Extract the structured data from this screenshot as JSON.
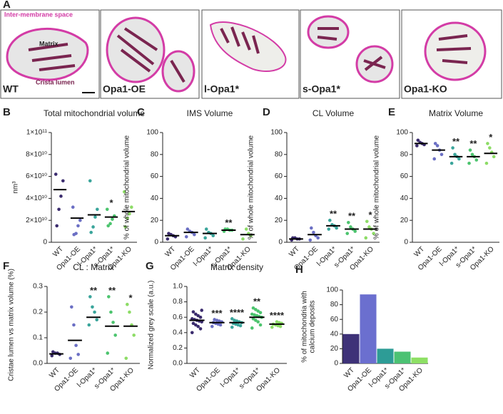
{
  "panel_a": {
    "letter": "A",
    "labels": [
      "Inter-membrane space",
      "Matrix",
      "Crista lumen"
    ],
    "conditions": [
      "WT",
      "Opa1-OE",
      "l-Opa1*",
      "s-Opa1*",
      "Opa1-KO"
    ]
  },
  "chart_data": [
    {
      "type": "strip",
      "panel": "B",
      "title": "Total mitochondrial volume",
      "ylabel": [
        "nm³"
      ],
      "categories": [
        "WT",
        "Opa1-OE",
        "l-Opa1*",
        "s-Opa1*",
        "Opa1-KO"
      ],
      "colors": [
        "#3b2c6e",
        "#6b6fc4",
        "#3aa59b",
        "#4cc46e",
        "#8ddc66"
      ],
      "points": [
        [
          62000000000,
          56000000000,
          42000000000,
          30000000000,
          15000000000
        ],
        [
          32000000000,
          20000000000,
          15000000000,
          8000000000,
          7000000000
        ],
        [
          56000000000,
          30000000000,
          23000000000,
          14000000000,
          9000000000
        ],
        [
          30000000000,
          24000000000,
          21000000000,
          17000000000,
          15000000000
        ],
        [
          46000000000,
          32000000000,
          26000000000,
          22000000000,
          14000000000
        ]
      ],
      "means": [
        48000000000,
        22000000000,
        25000000000,
        23000000000,
        28000000000
      ],
      "significance": [
        null,
        null,
        null,
        "*",
        null
      ],
      "ylim": [
        0,
        100000000000
      ],
      "yticks": [
        0,
        {
          "value": 20000000000,
          "label": "2×10¹⁰"
        },
        {
          "value": 40000000000,
          "label": "4×10¹⁰"
        },
        {
          "value": 60000000000,
          "label": "6×10¹⁰"
        },
        {
          "value": 80000000000,
          "label": "8×10¹⁰"
        },
        {
          "value": 100000000000,
          "label": "1×10¹¹"
        }
      ]
    },
    {
      "type": "strip",
      "panel": "C",
      "title": "IMS Volume",
      "ylabel": [
        "% of whole mitochondrial volume"
      ],
      "categories": [
        "WT",
        "Opa1-OE",
        "l-Opa1*",
        "s-Opa1*",
        "Opa1-KO"
      ],
      "colors": [
        "#3b2c6e",
        "#6b6fc4",
        "#3aa59b",
        "#4cc46e",
        "#8ddc66"
      ],
      "points": [
        [
          3,
          5,
          6,
          7,
          8
        ],
        [
          5,
          7,
          9,
          10,
          12
        ],
        [
          4,
          6,
          8,
          9,
          12
        ],
        [
          10,
          11,
          11,
          12,
          12
        ],
        [
          3,
          6,
          8,
          12
        ]
      ],
      "means": [
        6,
        9,
        8,
        11,
        7
      ],
      "significance": [
        null,
        null,
        null,
        "**",
        null
      ],
      "ylim": [
        0,
        100
      ],
      "yticks": [
        0,
        20,
        40,
        60,
        80,
        100
      ]
    },
    {
      "type": "strip",
      "panel": "D",
      "title": "CL Volume",
      "ylabel": [
        "% of whole mitochondrial volume"
      ],
      "categories": [
        "WT",
        "Opa1-OE",
        "l-Opa1*",
        "s-Opa1*",
        "Opa1-KO"
      ],
      "colors": [
        "#3b2c6e",
        "#6b6fc4",
        "#3aa59b",
        "#4cc46e",
        "#8ddc66"
      ],
      "points": [
        [
          2,
          3,
          3,
          4,
          4
        ],
        [
          2,
          4,
          6,
          9,
          13
        ],
        [
          12,
          13,
          15,
          16,
          20
        ],
        [
          8,
          10,
          12,
          14,
          18
        ],
        [
          4,
          8,
          12,
          14,
          19
        ]
      ],
      "means": [
        3,
        7,
        15,
        12,
        12
      ],
      "significance": [
        null,
        null,
        "**",
        "**",
        "*"
      ],
      "ylim": [
        0,
        100
      ],
      "yticks": [
        0,
        20,
        40,
        60,
        80,
        100
      ]
    },
    {
      "type": "strip",
      "panel": "E",
      "title": "Matrix Volume",
      "ylabel": [
        "% of whole mitochondrial volume"
      ],
      "categories": [
        "WT",
        "Opa1-OE",
        "l-Opa1*",
        "s-Opa1*",
        "Opa1-KO"
      ],
      "colors": [
        "#3b2c6e",
        "#6b6fc4",
        "#3aa59b",
        "#4cc46e",
        "#8ddc66"
      ],
      "points": [
        [
          88,
          89,
          90,
          91,
          93
        ],
        [
          76,
          80,
          84,
          88,
          90
        ],
        [
          72,
          76,
          78,
          80,
          86
        ],
        [
          72,
          75,
          78,
          80,
          84
        ],
        [
          72,
          78,
          82,
          86,
          90
        ]
      ],
      "means": [
        90,
        84,
        78,
        78,
        81
      ],
      "significance": [
        null,
        null,
        "**",
        "**",
        "*"
      ],
      "ylim": [
        0,
        100
      ],
      "yticks": [
        0,
        20,
        40,
        60,
        80,
        100
      ]
    },
    {
      "type": "strip",
      "panel": "F",
      "title": "CL : Matrix",
      "ylabel": [
        "Cristae lumen vs matrix volume (%)"
      ],
      "categories": [
        "WT",
        "Opa1-OE",
        "l-Opa1*",
        "s-Opa1*",
        "Opa1-KO"
      ],
      "colors": [
        "#3b2c6e",
        "#6b6fc4",
        "#3aa59b",
        "#4cc46e",
        "#8ddc66"
      ],
      "points": [
        [
          0.03,
          0.035,
          0.04,
          0.04,
          0.045
        ],
        [
          0.02,
          0.035,
          0.07,
          0.15,
          0.22
        ],
        [
          0.15,
          0.17,
          0.2,
          0.22,
          0.26
        ],
        [
          0.04,
          0.11,
          0.16,
          0.2,
          0.26
        ],
        [
          0.02,
          0.11,
          0.15,
          0.2,
          0.23
        ]
      ],
      "means": [
        0.037,
        0.09,
        0.18,
        0.145,
        0.145
      ],
      "significance": [
        null,
        null,
        "**",
        "**",
        "*"
      ],
      "ylim": [
        0,
        0.3
      ],
      "yticks": [
        {
          "value": 0,
          "label": "0.0"
        },
        0.1,
        0.2,
        0.3
      ]
    },
    {
      "type": "strip",
      "panel": "G",
      "title": "Matrix density",
      "ylabel": [
        "Normalized grey scale (a.u.)"
      ],
      "categories": [
        "WT",
        "Opa1-OE",
        "l-Opa1*",
        "s-Opa1*",
        "Opa1-KO"
      ],
      "colors": [
        "#3b2c6e",
        "#6b6fc4",
        "#3aa59b",
        "#4cc46e",
        "#8ddc66"
      ],
      "points": [
        [
          0.4,
          0.45,
          0.48,
          0.5,
          0.52,
          0.54,
          0.55,
          0.56,
          0.57,
          0.58,
          0.6,
          0.62,
          0.64,
          0.67,
          0.69
        ],
        [
          0.48,
          0.5,
          0.51,
          0.52,
          0.53,
          0.54,
          0.55,
          0.56,
          0.57
        ],
        [
          0.47,
          0.49,
          0.5,
          0.51,
          0.52,
          0.53,
          0.54,
          0.55,
          0.56,
          0.58
        ],
        [
          0.46,
          0.5,
          0.54,
          0.56,
          0.58,
          0.6,
          0.61,
          0.62,
          0.63,
          0.64,
          0.66,
          0.68,
          0.7,
          0.72
        ],
        [
          0.47,
          0.48,
          0.49,
          0.5,
          0.51,
          0.52,
          0.53,
          0.54
        ]
      ],
      "means": [
        0.56,
        0.53,
        0.53,
        0.6,
        0.51
      ],
      "significance": [
        null,
        "***",
        "****",
        "**",
        "****"
      ],
      "ylim": [
        0,
        1
      ],
      "yticks": [
        {
          "value": 0,
          "label": "0.0"
        },
        0.2,
        0.4,
        0.6,
        0.8,
        {
          "value": 1,
          "label": "1.0"
        }
      ]
    },
    {
      "type": "bar",
      "panel": "H",
      "ylabel": [
        "% of mitochondria with",
        "calcium deposits"
      ],
      "categories": [
        "WT",
        "Opa1-OE",
        "l-Opa1*",
        "s-Opa1*",
        "Opa1-KO"
      ],
      "colors": [
        "#3e3278",
        "#6b6fcf",
        "#2d9c96",
        "#4cc273",
        "#8ee065"
      ],
      "values": [
        40,
        94,
        20,
        16,
        8
      ],
      "ylim": [
        0,
        100
      ],
      "yticks": [
        0,
        20,
        40,
        60,
        80,
        100
      ]
    }
  ]
}
